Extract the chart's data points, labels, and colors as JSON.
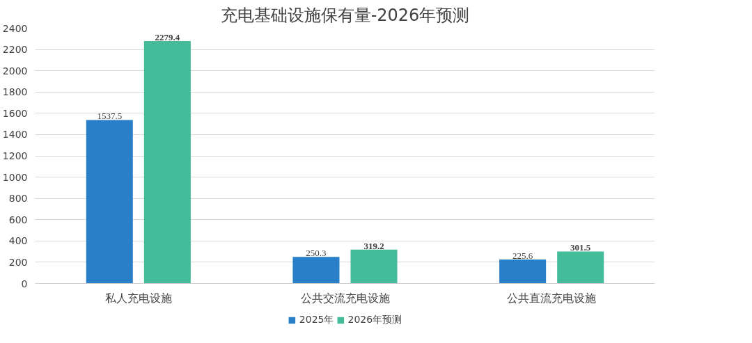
{
  "chart_data": {
    "type": "bar",
    "title": "充电基础设施保有量-2026年预测",
    "categories": [
      "私人充电设施",
      "公共交流充电设施",
      "公共直流充电设施"
    ],
    "series": [
      {
        "name": "2025年",
        "color": "#2980c8",
        "values": [
          1537.5,
          250.3,
          225.6
        ]
      },
      {
        "name": "2026年预测",
        "color": "#44bb99",
        "values": [
          2279.4,
          319.2,
          301.5
        ]
      }
    ],
    "ylim": [
      0,
      2400
    ],
    "yticks": [
      0,
      200,
      400,
      600,
      800,
      1000,
      1200,
      1400,
      1600,
      1800,
      2000,
      2200,
      2400
    ],
    "grid": "y",
    "legend": "bottom",
    "data_labels": true
  }
}
